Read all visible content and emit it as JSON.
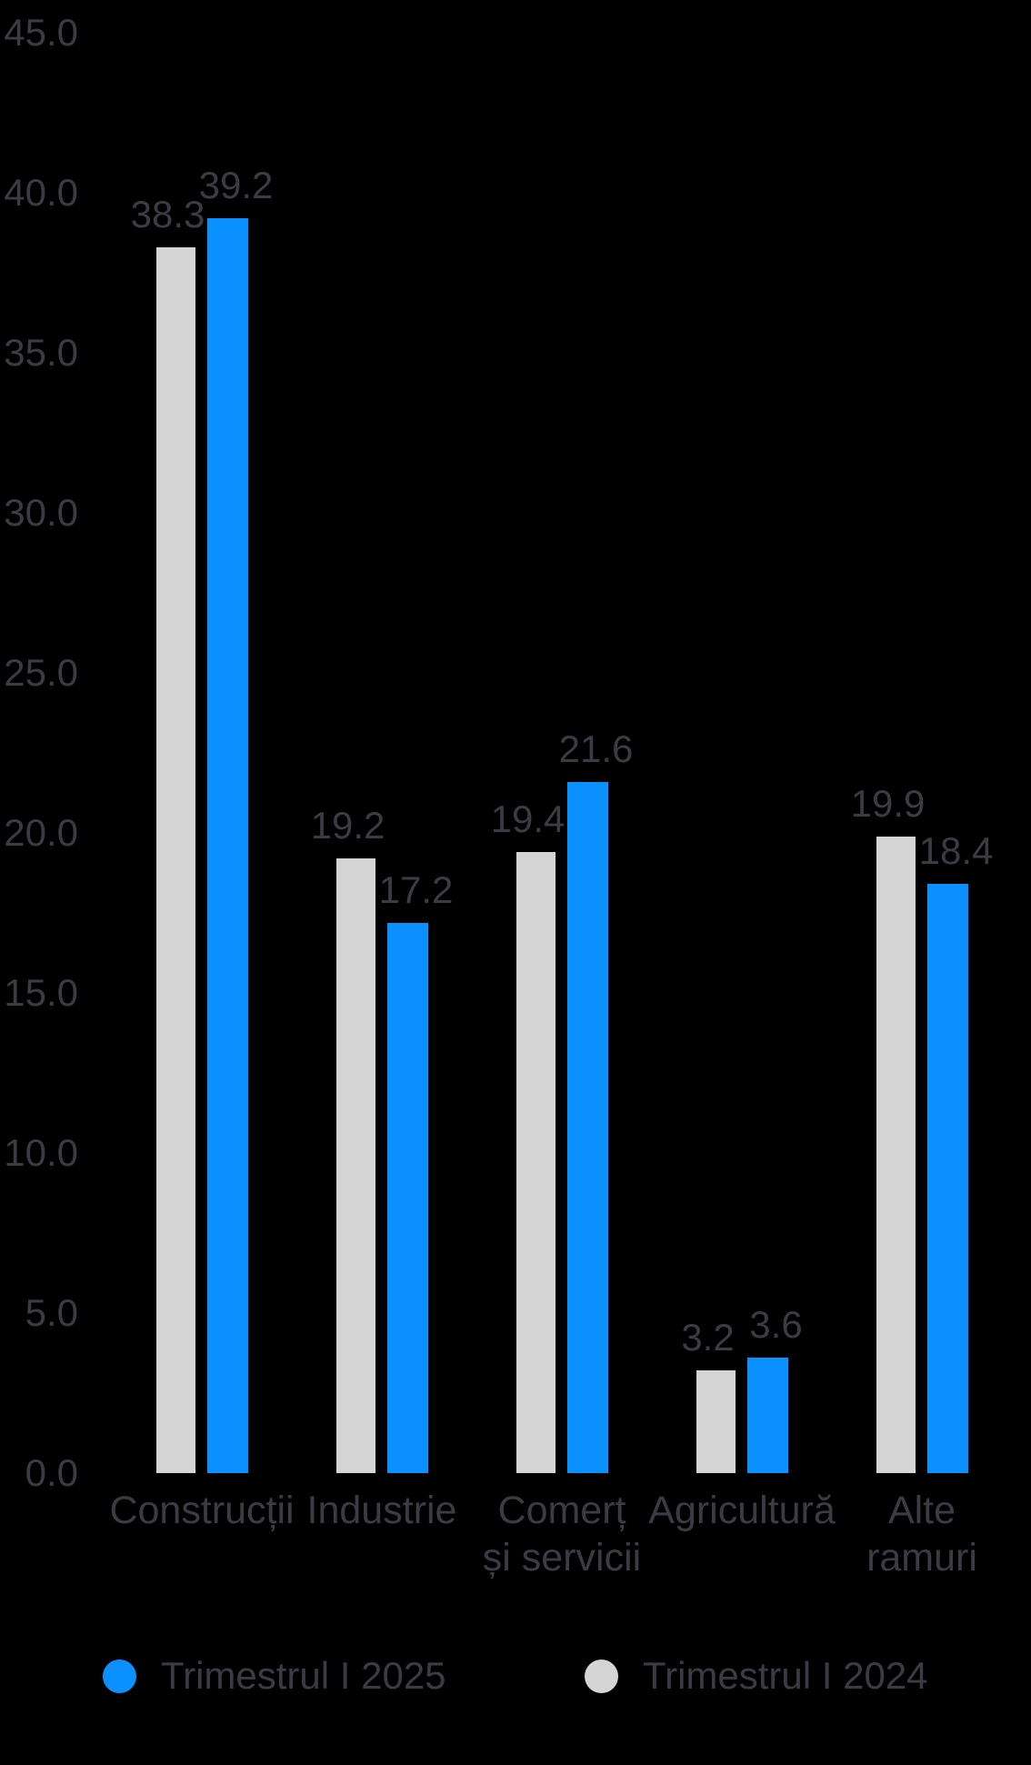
{
  "chart_data": {
    "type": "bar",
    "title": "",
    "xlabel": "",
    "ylabel": "",
    "categories": [
      "Construcții",
      "Industrie",
      "Comerț și servicii",
      "Agricultură",
      "Alte ramuri"
    ],
    "category_lines": [
      [
        "Construcții"
      ],
      [
        "Industrie"
      ],
      [
        "Comerț",
        "și servicii"
      ],
      [
        "Agricultură"
      ],
      [
        "Alte",
        "ramuri"
      ]
    ],
    "series": [
      {
        "name": "Trimestrul I 2025",
        "color": "#0A90FF",
        "values": [
          39.2,
          17.2,
          21.6,
          3.6,
          18.4
        ]
      },
      {
        "name": "Trimestrul I 2024",
        "color": "#D5D5D5",
        "values": [
          38.3,
          19.2,
          19.4,
          3.2,
          19.9
        ]
      }
    ],
    "bar_order": [
      "Trimestrul I 2024",
      "Trimestrul I 2025"
    ],
    "value_labels": {
      "Trimestrul I 2025": [
        "39.2",
        "17.2",
        "21.6",
        "3.6",
        "18.4"
      ],
      "Trimestrul I 2024": [
        "38.3",
        "19.2",
        "19.4",
        "3.2",
        "19.9"
      ]
    },
    "ylim": [
      0,
      45
    ],
    "ytick_step": 5,
    "yticks": [
      "45.0",
      "40.0",
      "35.0",
      "30.0",
      "25.0",
      "20.0",
      "15.0",
      "10.0",
      "5.0",
      "0.0"
    ],
    "grid": false,
    "legend_position": "bottom",
    "background_color": "#000000",
    "text_color": "#3B3B44"
  }
}
